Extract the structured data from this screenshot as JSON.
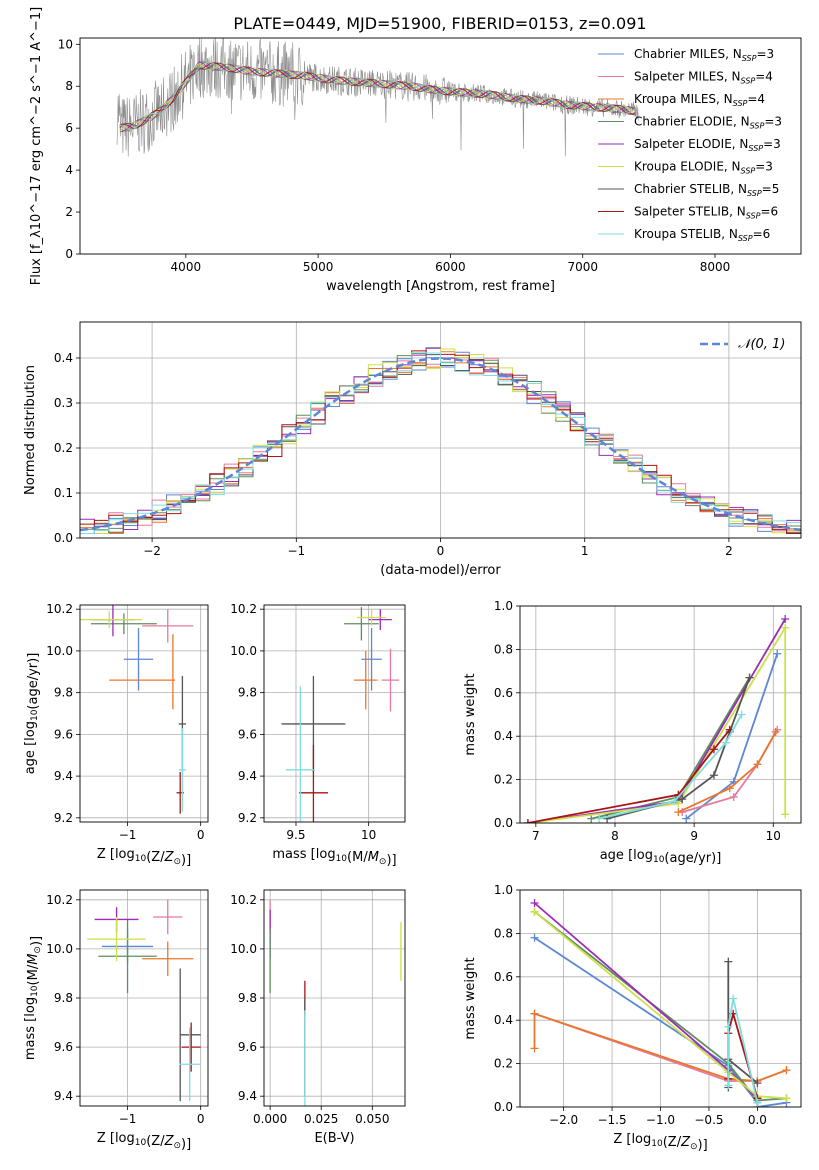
{
  "figure": {
    "title": "PLATE=0449, MJD=51900, FIBERID=0153, z=0.091"
  },
  "colors": {
    "chabrier_miles": "#5b87d6",
    "salpeter_miles": "#e8799a",
    "kroupa_miles": "#e8772e",
    "chabrier_elodie": "#5e8f5c",
    "salpeter_elodie": "#9b2bb8",
    "kroupa_elodie": "#cde04a",
    "chabrier_stelib": "#555555",
    "salpeter_stelib": "#aa1414",
    "kroupa_stelib": "#7fdde0",
    "observed": "#8c8c8c",
    "gauss": "#5b87d6"
  },
  "chart_data": [
    {
      "id": "spectrum",
      "type": "line",
      "xlabel": "wavelength [Angstrom, rest frame]",
      "ylabel": "Flux [f_λ10^−17 erg cm^−2 s^−1 A^−1]",
      "xlim": [
        3200,
        8650
      ],
      "ylim": [
        0,
        10.3
      ],
      "xticks": [
        4000,
        5000,
        6000,
        7000,
        8000
      ],
      "yticks": [
        0,
        2,
        4,
        6,
        8,
        10
      ],
      "grid": false,
      "legend_position": "right",
      "legend": [
        {
          "label": "Chabrier MILES, N",
          "sub": "SSP",
          "suffix": "=3",
          "key": "chabrier_miles"
        },
        {
          "label": "Salpeter MILES, N",
          "sub": "SSP",
          "suffix": "=4",
          "key": "salpeter_miles"
        },
        {
          "label": "Kroupa MILES, N",
          "sub": "SSP",
          "suffix": "=4",
          "key": "kroupa_miles"
        },
        {
          "label": "Chabrier ELODIE, N",
          "sub": "SSP",
          "suffix": "=3",
          "key": "chabrier_elodie"
        },
        {
          "label": "Salpeter ELODIE, N",
          "sub": "SSP",
          "suffix": "=3",
          "key": "salpeter_elodie"
        },
        {
          "label": "Kroupa ELODIE, N",
          "sub": "SSP",
          "suffix": "=3",
          "key": "kroupa_elodie"
        },
        {
          "label": "Chabrier STELIB, N",
          "sub": "SSP",
          "suffix": "=5",
          "key": "chabrier_stelib"
        },
        {
          "label": "Salpeter STELIB, N",
          "sub": "SSP",
          "suffix": "=6",
          "key": "salpeter_stelib"
        },
        {
          "label": "Kroupa STELIB, N",
          "sub": "SSP",
          "suffix": "=6",
          "key": "kroupa_stelib"
        }
      ],
      "continuum": {
        "x": [
          3500,
          3600,
          3700,
          3800,
          3900,
          4000,
          4100,
          4300,
          4500,
          4700,
          4900,
          5100,
          5300,
          5500,
          5700,
          5900,
          6100,
          6300,
          6500,
          6700,
          6900,
          7100,
          7300,
          7400
        ],
        "y": [
          6.0,
          6.1,
          6.4,
          6.8,
          7.4,
          8.2,
          9.0,
          8.9,
          8.7,
          8.6,
          8.5,
          8.3,
          8.2,
          8.1,
          8.0,
          7.8,
          7.7,
          7.6,
          7.4,
          7.3,
          7.1,
          7.0,
          6.9,
          6.8
        ]
      }
    },
    {
      "id": "residuals",
      "type": "bar",
      "xlabel": "(data-model)/error",
      "ylabel": "Normed distribution",
      "xlim": [
        -2.5,
        2.5
      ],
      "ylim": [
        0,
        0.48
      ],
      "xticks": [
        -2,
        -1,
        0,
        1,
        2
      ],
      "yticks": [
        0.0,
        0.1,
        0.2,
        0.3,
        0.4
      ],
      "grid": true,
      "legend_position": "top-right",
      "legend": [
        {
          "label": "𝒩(0, 1)",
          "key": "gauss",
          "style": "dashed"
        }
      ],
      "bin_width": 0.1
    },
    {
      "id": "z-age",
      "type": "scatter",
      "xlabel": "Z [log10(Z/Z☉)]",
      "ylabel": "age  [log10(age/yr)]",
      "xlim": [
        -1.65,
        0.1
      ],
      "ylim": [
        9.18,
        10.22
      ],
      "xticks": [
        -1,
        0
      ],
      "yticks": [
        9.2,
        9.4,
        9.6,
        9.8,
        10.0,
        10.2
      ],
      "grid": true,
      "points": [
        {
          "key": "chabrier_miles",
          "x": -0.85,
          "y": 9.96,
          "xerr": 0.2,
          "yerr": 0.15
        },
        {
          "key": "salpeter_miles",
          "x": -0.45,
          "y": 10.12,
          "xerr": 0.35,
          "yerr": 0.08
        },
        {
          "key": "kroupa_miles",
          "x": -0.8,
          "y": 9.86,
          "xerr": 0.45,
          "yerr": 0.0
        },
        {
          "key": "kroupa_miles",
          "x": -0.38,
          "y": 9.9,
          "xerr": 0.0,
          "yerr": 0.18
        },
        {
          "key": "chabrier_elodie",
          "x": -1.05,
          "y": 10.13,
          "xerr": 0.45,
          "yerr": 0.05
        },
        {
          "key": "salpeter_elodie",
          "x": -1.2,
          "y": 10.15,
          "xerr": 0.3,
          "yerr": 0.08
        },
        {
          "key": "kroupa_elodie",
          "x": -1.25,
          "y": 10.15,
          "xerr": 0.45,
          "yerr": 0.04
        },
        {
          "key": "chabrier_stelib",
          "x": -0.25,
          "y": 9.65,
          "xerr": 0.05,
          "yerr": 0.23
        },
        {
          "key": "salpeter_stelib",
          "x": -0.28,
          "y": 9.32,
          "xerr": 0.05,
          "yerr": 0.1
        },
        {
          "key": "kroupa_stelib",
          "x": -0.25,
          "y": 9.43,
          "xerr": 0.05,
          "yerr": 0.2
        }
      ]
    },
    {
      "id": "mass-age",
      "type": "scatter",
      "xlabel": "mass [log10(M/M☉)]",
      "ylabel": "",
      "xlim": [
        9.28,
        10.25
      ],
      "ylim": [
        9.18,
        10.22
      ],
      "xticks": [
        9.5,
        10.0
      ],
      "yticks": [
        9.2,
        9.4,
        9.6,
        9.8,
        10.0,
        10.2
      ],
      "grid": true,
      "points": [
        {
          "key": "chabrier_miles",
          "x": 10.02,
          "y": 9.96,
          "xerr": 0.07,
          "yerr": 0.15
        },
        {
          "key": "salpeter_miles",
          "x": 10.15,
          "y": 9.86,
          "xerr": 0.06,
          "yerr": 0.15
        },
        {
          "key": "kroupa_miles",
          "x": 9.98,
          "y": 9.86,
          "xerr": 0.08,
          "yerr": 0.14
        },
        {
          "key": "chabrier_elodie",
          "x": 9.95,
          "y": 10.13,
          "xerr": 0.12,
          "yerr": 0.08
        },
        {
          "key": "salpeter_elodie",
          "x": 10.08,
          "y": 10.15,
          "xerr": 0.08,
          "yerr": 0.05
        },
        {
          "key": "kroupa_elodie",
          "x": 10.02,
          "y": 10.16,
          "xerr": 0.1,
          "yerr": 0.04
        },
        {
          "key": "chabrier_stelib",
          "x": 9.62,
          "y": 9.65,
          "xerr": 0.22,
          "yerr": 0.23
        },
        {
          "key": "salpeter_stelib",
          "x": 9.62,
          "y": 9.32,
          "xerr": 0.1,
          "yerr": 0.23
        },
        {
          "key": "kroupa_stelib",
          "x": 9.53,
          "y": 9.43,
          "xerr": 0.1,
          "yerr": 0.4
        }
      ]
    },
    {
      "id": "age-weight",
      "type": "line",
      "xlabel": "age  [log10(age/yr)]",
      "ylabel": "mass weight",
      "xlim": [
        6.8,
        10.35
      ],
      "ylim": [
        0,
        1.0
      ],
      "xticks": [
        7,
        8,
        9,
        10
      ],
      "yticks": [
        0.0,
        0.2,
        0.4,
        0.6,
        0.8,
        1.0
      ],
      "grid": true,
      "series": [
        {
          "key": "chabrier_miles",
          "x": [
            8.9,
            9.5,
            10.05
          ],
          "y": [
            0.02,
            0.19,
            0.78
          ]
        },
        {
          "key": "salpeter_miles",
          "x": [
            8.85,
            9.5,
            9.8,
            10.05
          ],
          "y": [
            0.05,
            0.12,
            0.27,
            0.43
          ]
        },
        {
          "key": "kroupa_miles",
          "x": [
            8.8,
            9.45,
            9.8,
            10.03
          ],
          "y": [
            0.05,
            0.16,
            0.27,
            0.42
          ]
        },
        {
          "key": "chabrier_elodie",
          "x": [
            7.7,
            8.8,
            9.7
          ],
          "y": [
            0.02,
            0.12,
            0.67
          ]
        },
        {
          "key": "salpeter_elodie",
          "x": [
            6.9,
            8.8,
            10.15
          ],
          "y": [
            0.0,
            0.1,
            0.94
          ]
        },
        {
          "key": "kroupa_elodie",
          "x": [
            6.9,
            8.8,
            10.15,
            10.15
          ],
          "y": [
            0.0,
            0.09,
            0.9,
            0.04
          ]
        },
        {
          "key": "chabrier_stelib",
          "x": [
            7.9,
            8.85,
            9.25,
            9.45,
            9.7
          ],
          "y": [
            0.02,
            0.11,
            0.22,
            0.42,
            0.67
          ]
        },
        {
          "key": "salpeter_stelib",
          "x": [
            6.9,
            8.8,
            9.25,
            9.45
          ],
          "y": [
            0.0,
            0.13,
            0.34,
            0.43
          ]
        },
        {
          "key": "kroupa_stelib",
          "x": [
            7.8,
            8.75,
            9.4,
            9.6
          ],
          "y": [
            0.02,
            0.1,
            0.37,
            0.5
          ]
        }
      ]
    },
    {
      "id": "z-mass",
      "type": "scatter",
      "xlabel": "Z [log10(Z/Z☉)]",
      "ylabel": "mass [log10(M/M☉)]",
      "xlim": [
        -1.65,
        0.1
      ],
      "ylim": [
        9.36,
        10.24
      ],
      "xticks": [
        -1,
        0
      ],
      "yticks": [
        9.4,
        9.6,
        9.8,
        10.0,
        10.2
      ],
      "grid": true,
      "points": [
        {
          "key": "chabrier_miles",
          "x": -1.0,
          "y": 10.01,
          "xerr": 0.35,
          "yerr": 0.07
        },
        {
          "key": "salpeter_miles",
          "x": -0.45,
          "y": 10.13,
          "xerr": 0.2,
          "yerr": 0.07
        },
        {
          "key": "kroupa_miles",
          "x": -0.45,
          "y": 9.96,
          "xerr": 0.35,
          "yerr": 0.07
        },
        {
          "key": "chabrier_elodie",
          "x": -1.0,
          "y": 9.97,
          "xerr": 0.4,
          "yerr": 0.15
        },
        {
          "key": "salpeter_elodie",
          "x": -1.15,
          "y": 10.12,
          "xerr": 0.3,
          "yerr": 0.05
        },
        {
          "key": "kroupa_elodie",
          "x": -1.15,
          "y": 10.04,
          "xerr": 0.4,
          "yerr": 0.09
        },
        {
          "key": "chabrier_stelib",
          "x": -0.28,
          "y": 9.65,
          "xerr": 0.0,
          "yerr": 0.27
        },
        {
          "key": "chabrier_stelib",
          "x": -0.14,
          "y": 9.65,
          "xerr": 0.14,
          "yerr": 0.0
        },
        {
          "key": "salpeter_stelib",
          "x": -0.13,
          "y": 9.6,
          "xerr": 0.13,
          "yerr": 0.1
        },
        {
          "key": "kroupa_stelib",
          "x": -0.15,
          "y": 9.53,
          "xerr": 0.14,
          "yerr": 0.15
        }
      ]
    },
    {
      "id": "ebv-mass",
      "type": "scatter",
      "xlabel": "E(B-V)",
      "ylabel": "",
      "xlim": [
        -0.003,
        0.066
      ],
      "ylim": [
        9.36,
        10.24
      ],
      "xticks": [
        0.0,
        0.025,
        0.05
      ],
      "xtick_labels": [
        "0.000",
        "0.025",
        "0.050"
      ],
      "yticks": [
        9.4,
        9.6,
        9.8,
        10.0,
        10.2
      ],
      "grid": true,
      "points": [
        {
          "key": "salpeter_miles",
          "x": 0.0,
          "y": 10.13,
          "xerr": 0,
          "yerr": 0.07
        },
        {
          "key": "salpeter_elodie",
          "x": 0.0,
          "y": 10.06,
          "xerr": 0,
          "yerr": 0.1
        },
        {
          "key": "chabrier_elodie",
          "x": 0.0,
          "y": 9.95,
          "xerr": 0,
          "yerr": 0.13
        },
        {
          "key": "kroupa_elodie",
          "x": 0.064,
          "y": 9.99,
          "xerr": 0,
          "yerr": 0.12
        },
        {
          "key": "salpeter_stelib",
          "x": 0.017,
          "y": 9.8,
          "xerr": 0,
          "yerr": 0.07
        },
        {
          "key": "chabrier_stelib",
          "x": 0.017,
          "y": 9.6,
          "xerr": 0,
          "yerr": 0.2
        },
        {
          "key": "kroupa_stelib",
          "x": 0.017,
          "y": 9.55,
          "xerr": 0,
          "yerr": 0.2
        }
      ]
    },
    {
      "id": "z-weight",
      "type": "line",
      "xlabel": "Z [log10(Z/Z☉)]",
      "ylabel": "mass weight",
      "xlim": [
        -2.45,
        0.45
      ],
      "ylim": [
        0,
        1.0
      ],
      "xticks": [
        -2.0,
        -1.5,
        -1.0,
        -0.5,
        0.0
      ],
      "xtick_labels": [
        "−2.0",
        "−1.5",
        "−1.0",
        "−0.5",
        "0.0"
      ],
      "yticks": [
        0.0,
        0.2,
        0.4,
        0.6,
        0.8,
        1.0
      ],
      "grid": true,
      "series": [
        {
          "key": "chabrier_miles",
          "x": [
            -2.3,
            -0.3,
            0.0,
            0.0,
            0.3
          ],
          "y": [
            0.78,
            0.19,
            0.02,
            0.0,
            0.02
          ]
        },
        {
          "key": "salpeter_miles",
          "x": [
            -2.3,
            -0.3,
            0.0,
            0.3
          ],
          "y": [
            0.43,
            0.12,
            0.12,
            0.17
          ]
        },
        {
          "key": "kroupa_miles",
          "x": [
            -2.3,
            -2.3,
            -0.3,
            0.0,
            0.3
          ],
          "y": [
            0.27,
            0.43,
            0.13,
            0.12,
            0.17
          ]
        },
        {
          "key": "chabrier_elodie",
          "x": [
            -2.3,
            -0.3,
            0.0,
            0.3
          ],
          "y": [
            0.9,
            0.2,
            0.03,
            0.04
          ]
        },
        {
          "key": "salpeter_elodie",
          "x": [
            -2.3,
            -0.3,
            0.0
          ],
          "y": [
            0.94,
            0.17,
            0.04
          ]
        },
        {
          "key": "kroupa_elodie",
          "x": [
            -2.3,
            -0.3,
            0.0,
            0.3
          ],
          "y": [
            0.9,
            0.16,
            0.05,
            0.04
          ]
        },
        {
          "key": "chabrier_stelib",
          "x": [
            -0.3,
            -0.3,
            -0.3,
            0.0
          ],
          "y": [
            0.09,
            0.67,
            0.22,
            0.11
          ]
        },
        {
          "key": "salpeter_stelib",
          "x": [
            -0.3,
            -0.3,
            -0.25,
            0.0
          ],
          "y": [
            0.13,
            0.34,
            0.43,
            0.04
          ]
        },
        {
          "key": "kroupa_stelib",
          "x": [
            -0.3,
            -0.3,
            -0.25,
            0.0
          ],
          "y": [
            0.1,
            0.37,
            0.5,
            0.02
          ]
        }
      ]
    }
  ]
}
